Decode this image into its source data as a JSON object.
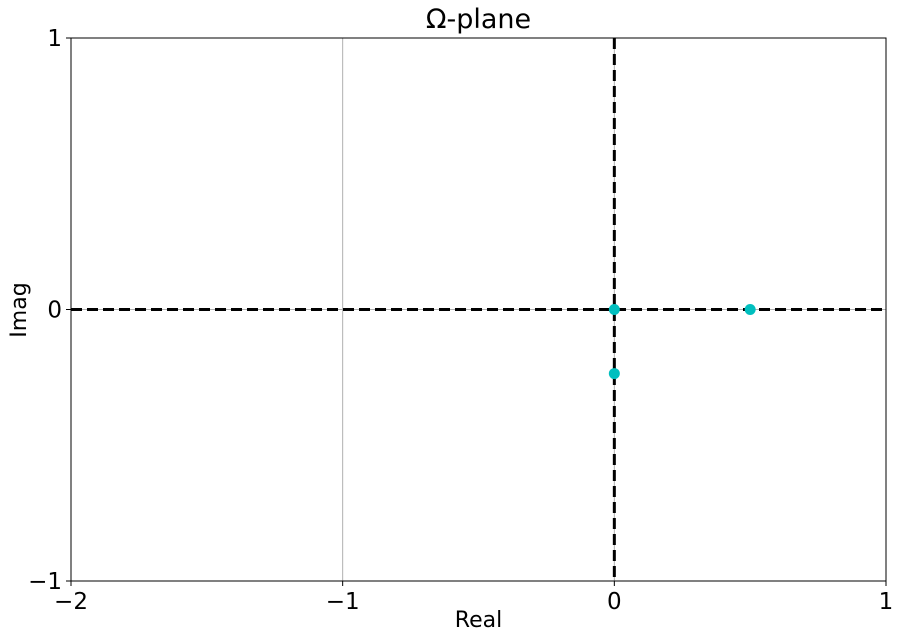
{
  "chart_data": {
    "type": "scatter",
    "title": "Ω-plane",
    "xlabel": "Real",
    "ylabel": "Imag",
    "xlim": [
      -2,
      1
    ],
    "ylim": [
      -1,
      1
    ],
    "xticks": [
      -2,
      -1,
      0,
      1
    ],
    "xtick_labels": [
      "−2",
      "−1",
      "0",
      "1"
    ],
    "yticks": [
      -1,
      0,
      1
    ],
    "ytick_labels": [
      "−1",
      "0",
      "1"
    ],
    "grid": true,
    "series": [
      {
        "points": [
          {
            "x": 0,
            "y": 0
          },
          {
            "x": 0.5,
            "y": 0
          },
          {
            "x": 0,
            "y": -0.236
          }
        ],
        "color": "#00bfbf"
      }
    ],
    "reference_lines": {
      "horizontal_y": 0,
      "vertical_x": 0,
      "style": "dashed",
      "color": "#000000"
    },
    "gridline_color": "#b0b0b0"
  }
}
